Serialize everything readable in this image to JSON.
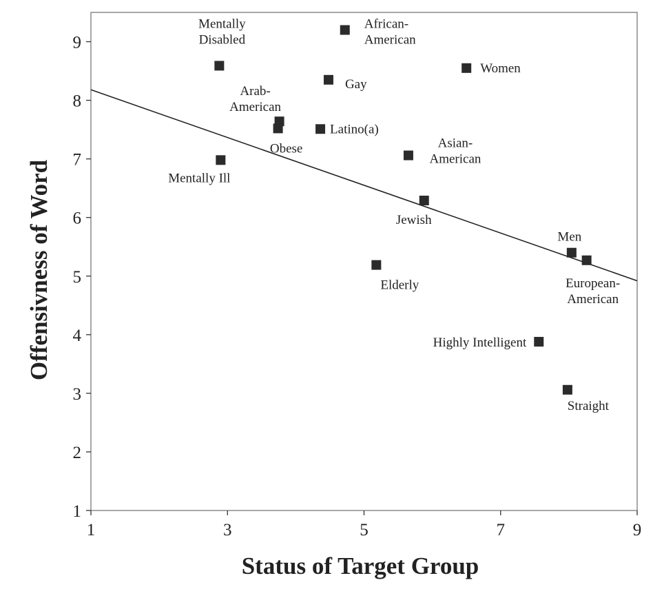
{
  "chart_data": {
    "type": "scatter",
    "title": "",
    "xlabel": "Status of Target Group",
    "ylabel": "Offensivness of Word",
    "xlim": [
      1,
      9
    ],
    "ylim": [
      1,
      9.5
    ],
    "xticks": [
      "1",
      "3",
      "5",
      "7",
      "9"
    ],
    "yticks": [
      "1",
      "2",
      "3",
      "4",
      "5",
      "6",
      "7",
      "8",
      "9"
    ],
    "grid": false,
    "trendline": {
      "x": [
        1,
        9
      ],
      "y": [
        8.18,
        4.92
      ]
    },
    "points": [
      {
        "label": [
          "Mentally",
          "Disabled"
        ],
        "x": 2.88,
        "y": 8.59
      },
      {
        "label": [
          "African-",
          "American"
        ],
        "x": 4.72,
        "y": 9.2
      },
      {
        "label": [
          "Women"
        ],
        "x": 6.5,
        "y": 8.55
      },
      {
        "label": [
          "Gay"
        ],
        "x": 4.48,
        "y": 8.35
      },
      {
        "label": [
          "Arab-",
          "American"
        ],
        "x": 3.76,
        "y": 7.64
      },
      {
        "label": [
          "Obese"
        ],
        "x": 3.74,
        "y": 7.52
      },
      {
        "label": [
          "Latino(a)"
        ],
        "x": 4.36,
        "y": 7.51
      },
      {
        "label": [
          "Asian-",
          "American"
        ],
        "x": 5.65,
        "y": 7.06
      },
      {
        "label": [
          "Mentally Ill"
        ],
        "x": 2.9,
        "y": 6.98
      },
      {
        "label": [
          "Jewish"
        ],
        "x": 5.88,
        "y": 6.29
      },
      {
        "label": [
          "Men"
        ],
        "x": 8.04,
        "y": 5.4
      },
      {
        "label": [
          "European-",
          "American"
        ],
        "x": 8.26,
        "y": 5.27
      },
      {
        "label": [
          "Elderly"
        ],
        "x": 5.18,
        "y": 5.19
      },
      {
        "label": [
          "Highly Intelligent"
        ],
        "x": 7.56,
        "y": 3.88
      },
      {
        "label": [
          "Straight"
        ],
        "x": 7.98,
        "y": 3.06
      }
    ]
  }
}
